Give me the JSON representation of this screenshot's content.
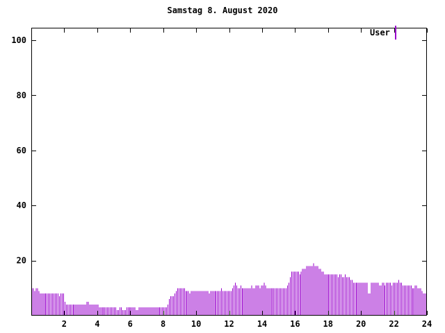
{
  "title": "Samstag 8. August 2020",
  "legend": {
    "label": "User",
    "color": "#9900cc"
  },
  "chart_data": {
    "type": "bar",
    "title": "Samstag 8. August 2020",
    "xlabel": "",
    "ylabel": "",
    "xlim": [
      0,
      24
    ],
    "ylim": [
      0,
      104
    ],
    "x_ticks": [
      2,
      4,
      6,
      8,
      10,
      12,
      14,
      16,
      18,
      20,
      22,
      24
    ],
    "y_ticks": [
      20,
      40,
      60,
      80,
      100
    ],
    "grid": false,
    "legend_position": "top-right",
    "series": [
      {
        "name": "User",
        "color": "#9900cc",
        "interval_minutes": 5,
        "values": [
          10,
          10,
          9,
          10,
          10,
          9,
          8,
          8,
          8,
          8,
          8,
          8,
          8,
          8,
          8,
          8,
          8,
          8,
          8,
          8,
          7,
          8,
          8,
          8,
          5,
          4,
          4,
          4,
          4,
          4,
          4,
          4,
          4,
          4,
          4,
          4,
          4,
          4,
          4,
          4,
          5,
          5,
          4,
          4,
          4,
          4,
          4,
          4,
          4,
          3,
          3,
          3,
          3,
          3,
          3,
          3,
          3,
          3,
          3,
          3,
          3,
          3,
          2,
          2,
          3,
          3,
          2,
          2,
          2,
          3,
          3,
          3,
          3,
          3,
          3,
          3,
          2,
          2,
          3,
          3,
          3,
          3,
          3,
          3,
          3,
          3,
          3,
          3,
          3,
          3,
          3,
          3,
          3,
          3,
          3,
          3,
          3,
          3,
          3,
          4,
          6,
          7,
          7,
          7,
          8,
          9,
          10,
          10,
          10,
          10,
          10,
          10,
          9,
          9,
          9,
          8,
          9,
          9,
          9,
          9,
          9,
          9,
          9,
          9,
          9,
          9,
          9,
          9,
          9,
          8,
          9,
          9,
          9,
          9,
          9,
          9,
          9,
          9,
          10,
          9,
          9,
          9,
          9,
          9,
          9,
          9,
          10,
          11,
          12,
          11,
          10,
          10,
          11,
          10,
          10,
          10,
          10,
          10,
          10,
          10,
          11,
          10,
          10,
          11,
          11,
          11,
          10,
          11,
          11,
          12,
          11,
          10,
          10,
          10,
          10,
          10,
          10,
          10,
          10,
          10,
          10,
          10,
          10,
          10,
          10,
          10,
          11,
          12,
          14,
          16,
          16,
          16,
          16,
          16,
          16,
          15,
          16,
          17,
          17,
          17,
          18,
          18,
          18,
          18,
          18,
          19,
          18,
          18,
          18,
          17,
          17,
          16,
          16,
          15,
          15,
          15,
          15,
          15,
          15,
          15,
          15,
          15,
          15,
          14,
          15,
          15,
          14,
          14,
          15,
          14,
          14,
          14,
          13,
          13,
          12,
          12,
          12,
          12,
          12,
          12,
          12,
          12,
          12,
          12,
          12,
          8,
          8,
          12,
          12,
          12,
          12,
          12,
          12,
          11,
          11,
          12,
          12,
          11,
          12,
          12,
          12,
          12,
          11,
          12,
          12,
          12,
          12,
          13,
          12,
          12,
          11,
          11,
          11,
          11,
          11,
          11,
          11,
          10,
          10,
          11,
          11,
          10,
          10,
          10,
          9,
          8,
          8,
          8
        ]
      }
    ]
  }
}
